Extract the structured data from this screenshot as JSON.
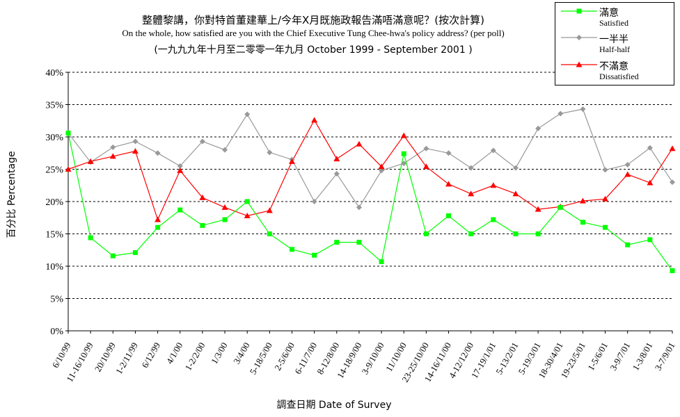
{
  "titles": {
    "line1": "整體黎講，你對特首董建華上/今年X月既施政報告滿唔滿意呢？(按次計算)",
    "line2": "On the whole, how satisfied are you with the Chief Executive Tung Chee-hwa's policy address? (per poll)",
    "line3": "(一九九九年十月至二零零一年九月 October 1999 - September 2001 )"
  },
  "colors": {
    "satisfied": "#00ff00",
    "half": "#999999",
    "dissatisfied": "#ff0000",
    "grid": "#000000"
  },
  "legend": {
    "items": [
      {
        "zh": "滿意",
        "en": "Satisfied",
        "marker": "square"
      },
      {
        "zh": "一半半",
        "en": "Half-half",
        "marker": "diamond"
      },
      {
        "zh": "不滿意",
        "en": "Dissatisfied",
        "marker": "triangle"
      }
    ]
  },
  "chart_data": {
    "type": "line",
    "title": "整體黎講，你對特首董建華上/今年X月既施政報告滿唔滿意呢？(按次計算)",
    "xlabel": "調查日期 Date of Survey",
    "ylabel": "百分比 Percentage",
    "ylim": [
      0,
      40
    ],
    "yticks": [
      "0%",
      "5%",
      "10%",
      "15%",
      "20%",
      "25%",
      "30%",
      "35%",
      "40%"
    ],
    "grid": "horizontal dashed",
    "legend_position": "top-right",
    "categories": [
      "6/10/99",
      "11-16/10/99",
      "20/10/99",
      "1-2/11/99",
      "6/12/99",
      "4/1/00",
      "1-2/2/00",
      "1/3/00",
      "3/4/00",
      "5-18/5/00",
      "2-5/6/00",
      "6-11/7/00",
      "8-12/8/00",
      "14-18/9/00",
      "3-9/10/00",
      "11/10/00",
      "23-25/10/00",
      "14-16/11/00",
      "4-12/12/00",
      "17-19/1/01",
      "5-13/2/01",
      "5-19/3/01",
      "18-30/4/01",
      "19-23/5/01",
      "1-5/6/01",
      "3-9/7/01",
      "1-3/8/01",
      "3-7/9/01"
    ],
    "series": [
      {
        "name": "滿意 Satisfied",
        "values": [
          30.6,
          14.4,
          11.6,
          12.1,
          16.0,
          18.7,
          16.3,
          17.2,
          20.0,
          15.0,
          12.6,
          11.7,
          13.7,
          13.7,
          10.7,
          27.4,
          15.0,
          17.8,
          15.0,
          17.2,
          15.0,
          15.0,
          19.1,
          16.8,
          16.0,
          13.3,
          14.1,
          9.3
        ]
      },
      {
        "name": "一半半 Half-half",
        "values": [
          30.6,
          26.1,
          28.4,
          29.3,
          27.5,
          25.5,
          29.3,
          28.0,
          33.5,
          27.6,
          26.5,
          20.0,
          24.3,
          19.1,
          24.8,
          25.9,
          28.2,
          27.5,
          25.2,
          27.9,
          25.2,
          31.3,
          33.6,
          34.3,
          24.9,
          25.7,
          28.3,
          23.0
        ]
      },
      {
        "name": "不滿意 Dissatisfied",
        "values": [
          25.0,
          26.2,
          27.0,
          27.8,
          17.2,
          24.8,
          20.6,
          19.1,
          17.8,
          18.6,
          26.2,
          32.6,
          26.6,
          28.9,
          25.4,
          30.2,
          25.4,
          22.7,
          21.2,
          22.5,
          21.2,
          18.8,
          19.2,
          20.1,
          20.4,
          24.2,
          22.9,
          28.2
        ]
      }
    ]
  }
}
